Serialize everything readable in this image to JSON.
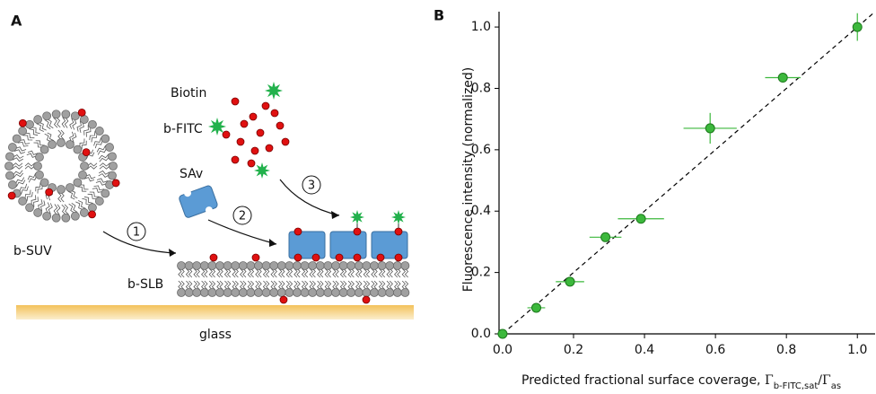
{
  "panel_a": {
    "label": "A",
    "labels": {
      "biotin": "Biotin",
      "b_fitc": "b-FITC",
      "sav": "SAv",
      "b_suv": "b-SUV",
      "b_slb": "b-SLB",
      "glass": "glass"
    },
    "steps": [
      "1",
      "2",
      "3"
    ]
  },
  "chart_data": {
    "type": "scatter",
    "label": "B",
    "xlabel": [
      {
        "text": "Predicted fractional surface coverage, "
      },
      {
        "text": "Γ"
      },
      {
        "text": "b-FITC,sat",
        "sub": true
      },
      {
        "text": "/Γ"
      },
      {
        "text": "as",
        "sub": true
      }
    ],
    "ylabel": "Fluorescence intensity (normalized)",
    "xlim": [
      -0.01,
      1.05
    ],
    "ylim": [
      0,
      1.05
    ],
    "xticks": [
      {
        "value": 0,
        "label": "0.0"
      },
      {
        "value": 0.2,
        "label": "0.2"
      },
      {
        "value": 0.4,
        "label": "0.4"
      },
      {
        "value": 0.6,
        "label": "0.6"
      },
      {
        "value": 0.8,
        "label": "0.8"
      },
      {
        "value": 1,
        "label": "1.0"
      }
    ],
    "yticks": [
      {
        "value": 0,
        "label": "0.0"
      },
      {
        "value": 0.2,
        "label": "0.2"
      },
      {
        "value": 0.4,
        "label": "0.4"
      },
      {
        "value": 0.6,
        "label": "0.6"
      },
      {
        "value": 0.8,
        "label": "0.8"
      },
      {
        "value": 1,
        "label": "1.0"
      }
    ],
    "series": [
      {
        "color": "#3cb83c",
        "x": [
          0,
          0.095,
          0.19,
          0.29,
          0.39,
          0.585,
          0.79,
          1.0
        ],
        "values": [
          0,
          0.085,
          0.17,
          0.315,
          0.375,
          0.67,
          0.835,
          1.0
        ],
        "xerr": [
          0,
          0.025,
          0.04,
          0.045,
          0.065,
          0.075,
          0.05,
          0
        ],
        "yerr": [
          0,
          0.01,
          0.01,
          0.01,
          0.01,
          0.05,
          0.015,
          0.045
        ]
      }
    ],
    "reference_line": {
      "x": [
        0,
        1.05
      ],
      "values": [
        0,
        1.05
      ],
      "color": "#000000",
      "dashed": true
    }
  }
}
